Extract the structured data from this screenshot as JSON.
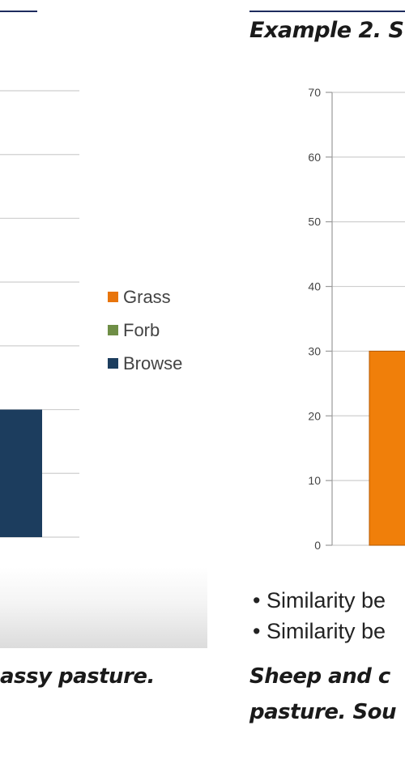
{
  "heading": "Example 2. S",
  "left_caption": "assy pasture.",
  "right_caption": [
    "Sheep and c",
    "pasture. Sou"
  ],
  "bullets": [
    "• Similarity be",
    "• Similarity be"
  ],
  "legend": [
    {
      "label": "Grass",
      "color": "#e8750c"
    },
    {
      "label": "Forb",
      "color": "#6f8e46"
    },
    {
      "label": "Browse",
      "color": "#1c3d5e"
    }
  ],
  "chart_data": [
    {
      "type": "bar",
      "legend_position": "right",
      "grid": true,
      "series": [
        {
          "name": "Browse",
          "values": [
            20
          ]
        }
      ],
      "colors": {
        "Browse": "#1c3d5e"
      }
    },
    {
      "type": "bar",
      "ylim": [
        0,
        70
      ],
      "yticks": [
        0,
        10,
        20,
        30,
        40,
        50,
        60,
        70
      ],
      "grid": true,
      "series": [
        {
          "values": [
            30
          ]
        }
      ],
      "colors": {
        "bar": "#f07f0a"
      }
    }
  ]
}
